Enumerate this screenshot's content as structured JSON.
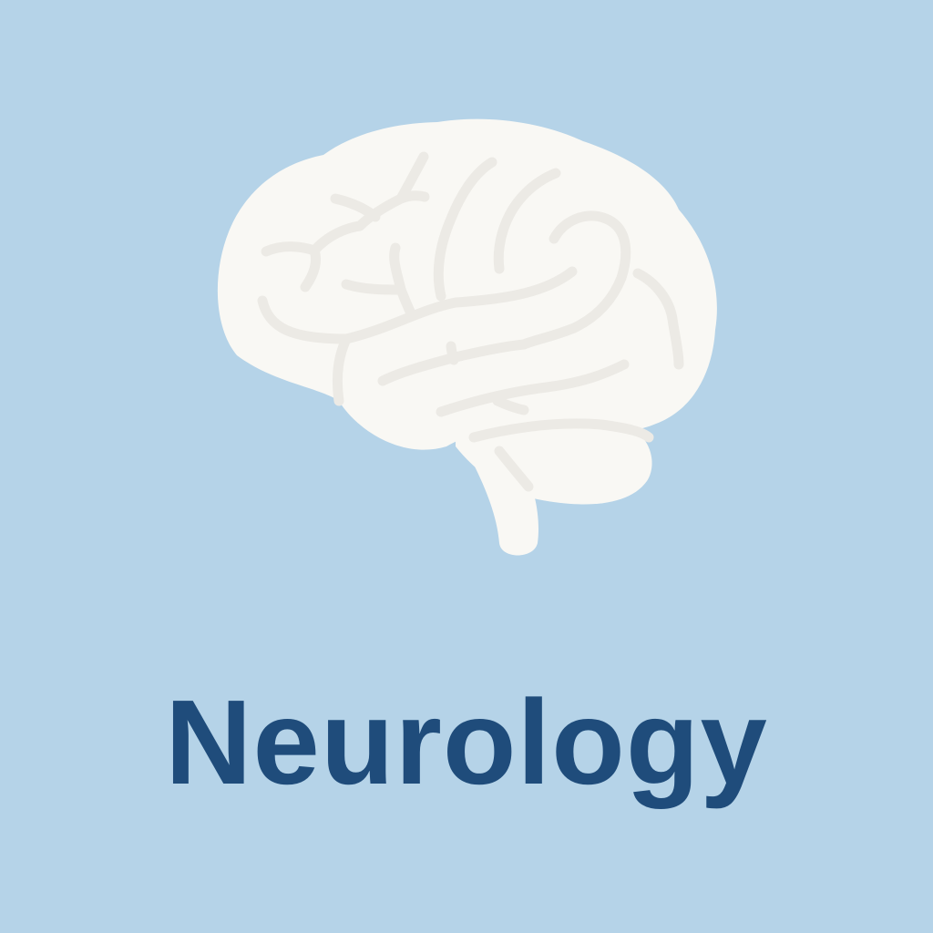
{
  "icon": {
    "name": "brain-icon",
    "fill_color": "#f9f8f4",
    "fold_color": "#eceae5"
  },
  "title": {
    "text": "Neurology",
    "color": "#1f4c7b"
  },
  "background_color": "#b5d3e8"
}
